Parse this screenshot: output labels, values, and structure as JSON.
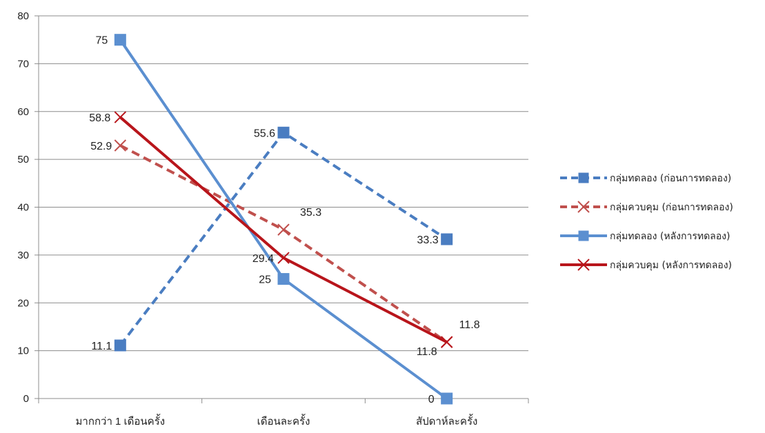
{
  "chart_data": {
    "type": "line",
    "title": "",
    "xlabel": "",
    "ylabel": "",
    "categories": [
      "มากกว่า 1 เดือนครั้ง",
      "เดือนละครั้ง",
      "สัปดาห์ละครั้ง"
    ],
    "ylim": [
      0,
      80
    ],
    "yticks": [
      0,
      10,
      20,
      30,
      40,
      50,
      60,
      70,
      80
    ],
    "grid": true,
    "legend_position": "right",
    "series": [
      {
        "name": "กลุ่มทดลอง (ก่อนการทดลอง)",
        "values": [
          11.1,
          55.6,
          33.3
        ],
        "labels": [
          "11.1",
          "55.6",
          "33.3"
        ],
        "color": "#4a7dc1",
        "dashed": true,
        "marker": "square"
      },
      {
        "name": "กลุ่มควบคุม (ก่อนการทดลอง)",
        "values": [
          52.9,
          35.3,
          11.8
        ],
        "labels": [
          "52.9",
          "35.3",
          "11.8"
        ],
        "color": "#c0504d",
        "dashed": true,
        "marker": "x"
      },
      {
        "name": "กลุ่มทดลอง (หลังการทดลอง)",
        "values": [
          75,
          25,
          0
        ],
        "labels": [
          "75",
          "25",
          "0"
        ],
        "color": "#5b8fd0",
        "dashed": false,
        "marker": "square"
      },
      {
        "name": "กลุ่มควบคุม (หลังการทดลอง)",
        "values": [
          58.8,
          29.4,
          11.8
        ],
        "labels": [
          "58.8",
          "29.4",
          "11.8"
        ],
        "color": "#b8151b",
        "dashed": false,
        "marker": "x"
      }
    ]
  }
}
